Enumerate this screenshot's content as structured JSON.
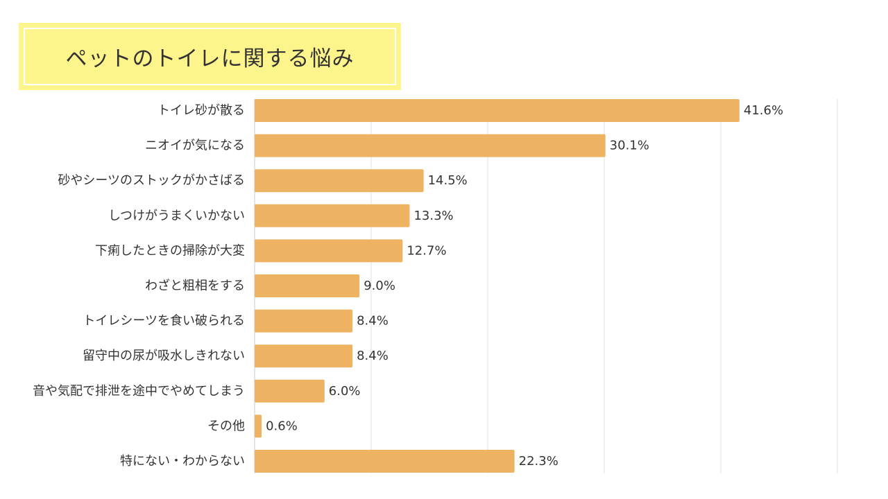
{
  "title": "ペットのトイレに関する悩み",
  "colors": {
    "bar": "#eeb263",
    "title_bg": "#fef48c",
    "grid": "#e2e2e2",
    "axis": "#c8c8c8"
  },
  "chart_data": {
    "type": "bar",
    "orientation": "horizontal",
    "categories": [
      "トイレ砂が散る",
      "ニオイが気になる",
      "砂やシーツのストックがかさばる",
      "しつけがうまくいかない",
      "下痢したときの掃除が大変",
      "わざと粗相をする",
      "トイレシーツを食い破られる",
      "留守中の尿が吸水しきれない",
      "音や気配で排泄を途中でやめてしまう",
      "その他",
      "特にない・わからない"
    ],
    "values": [
      41.6,
      30.1,
      14.5,
      13.3,
      12.7,
      9.0,
      8.4,
      8.4,
      6.0,
      0.6,
      22.3
    ],
    "value_labels": [
      "41.6%",
      "30.1%",
      "14.5%",
      "13.3%",
      "12.7%",
      "9.0%",
      "8.4%",
      "8.4%",
      "6.0%",
      "0.6%",
      "22.3%"
    ],
    "xlim": [
      0,
      50
    ],
    "grid": true,
    "legend": "none"
  }
}
